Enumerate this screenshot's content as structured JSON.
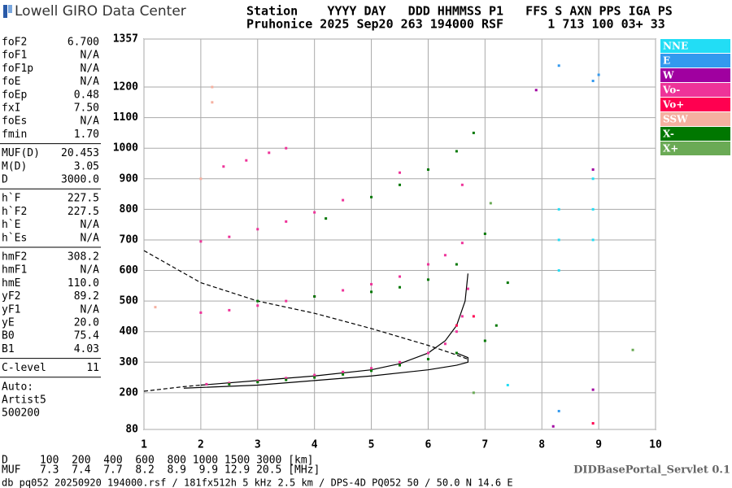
{
  "header": {
    "logo": "Lowell GIRO Data Center",
    "line1": "Station    YYYY DAY   DDD HHMMSS P1   FFS S AXN PPS IGA PS",
    "line2": "Pruhonice 2025 Sep20 263 194000 RSF      1 713 100 03+ 33"
  },
  "params": [
    [
      [
        "foF2",
        "6.700"
      ],
      [
        "foF1",
        "N/A"
      ],
      [
        "foF1p",
        "N/A"
      ],
      [
        "foE",
        "N/A"
      ],
      [
        "foEp",
        "0.48"
      ],
      [
        "fxI",
        "7.50"
      ],
      [
        "foEs",
        "N/A"
      ],
      [
        "fmin",
        "1.70"
      ]
    ],
    [
      [
        "MUF(D)",
        "20.453"
      ],
      [
        "M(D)",
        "3.05"
      ],
      [
        "D",
        "3000.0"
      ]
    ],
    [
      [
        "h`F",
        "227.5"
      ],
      [
        "h`F2",
        "227.5"
      ],
      [
        "h`E",
        "N/A"
      ],
      [
        "h`Es",
        "N/A"
      ]
    ],
    [
      [
        "hmF2",
        "308.2"
      ],
      [
        "hmF1",
        "N/A"
      ],
      [
        "hmE",
        "110.0"
      ],
      [
        "yF2",
        "89.2"
      ],
      [
        "yF1",
        "N/A"
      ],
      [
        "yE",
        "20.0"
      ],
      [
        "B0",
        "75.4"
      ],
      [
        "B1",
        "4.03"
      ]
    ],
    [
      [
        "C-level",
        "11"
      ]
    ]
  ],
  "auto": [
    "Auto:",
    "Artist5",
    "500200"
  ],
  "footer": {
    "d_row": "D     100  200  400  600  800 1000 1500 3000 [km]",
    "muf_row": "MUF   7.3  7.4  7.7  8.2  8.9  9.9 12.9 20.5 [MHz]",
    "file": "db pq052 20250920 194000.rsf / 181fx512h 5 kHz 2.5 km / DPS-4D PQ052 50 / 50.0 N 14.6 E",
    "servlet": "DIDBasePortal_Servlet 0.1"
  },
  "chart_data": {
    "type": "scatter",
    "xlim": [
      1,
      10
    ],
    "xticks": [
      1,
      2,
      3,
      4,
      5,
      6,
      7,
      8,
      9,
      10
    ],
    "ylim": [
      80,
      1357
    ],
    "yticks": [
      80,
      200,
      300,
      400,
      500,
      600,
      700,
      800,
      900,
      1000,
      1100,
      1200,
      1357
    ],
    "grid": true,
    "legend": "right",
    "series": [
      {
        "name": "NNE",
        "color": "#22ddf5",
        "x": [
          8.3,
          8.3,
          8.3,
          8.9,
          8.9,
          8.9,
          7.4
        ],
        "values": [
          600,
          700,
          800,
          700,
          800,
          900,
          225
        ]
      },
      {
        "name": "E",
        "color": "#3399ee",
        "x": [
          8.9,
          9.0,
          8.3,
          8.3
        ],
        "values": [
          1220,
          1240,
          140,
          1270
        ]
      },
      {
        "name": "W",
        "color": "#a000a0",
        "x": [
          8.9,
          8.9,
          7.9,
          8.2
        ],
        "values": [
          930,
          210,
          1190,
          90
        ]
      },
      {
        "name": "Vo-",
        "color": "#ee3399",
        "x": [
          2.1,
          2.5,
          3.0,
          3.5,
          4.0,
          4.5,
          5.0,
          5.5,
          6.0,
          6.3,
          6.5,
          6.6,
          6.7,
          2.0,
          2.5,
          3.0,
          3.5,
          4.0,
          4.5,
          5.0,
          5.5,
          6.0,
          6.3,
          6.6,
          2.0,
          2.5,
          3.0,
          3.5,
          4.0,
          4.5,
          2.4,
          2.8,
          3.2,
          3.5,
          5.5,
          6.6
        ],
        "values": [
          228,
          232,
          240,
          248,
          258,
          268,
          280,
          300,
          330,
          360,
          400,
          450,
          540,
          462,
          470,
          485,
          500,
          515,
          535,
          555,
          580,
          620,
          650,
          690,
          695,
          710,
          735,
          760,
          790,
          830,
          940,
          960,
          985,
          1000,
          920,
          880
        ]
      },
      {
        "name": "Vo+",
        "color": "#ff0050",
        "x": [
          6.8,
          8.9,
          6.5
        ],
        "values": [
          450,
          100,
          420
        ]
      },
      {
        "name": "SSW",
        "color": "#f5b0a0",
        "x": [
          2.2,
          2.2,
          1.2,
          2.0
        ],
        "values": [
          1150,
          1200,
          480,
          900
        ]
      },
      {
        "name": "X-",
        "color": "#007700",
        "x": [
          2.5,
          3.0,
          3.5,
          4.0,
          4.5,
          5.0,
          5.5,
          6.0,
          6.5,
          7.0,
          7.2,
          7.4,
          3.0,
          4.0,
          5.0,
          5.5,
          6.0,
          6.5,
          7.0,
          4.2,
          5.0,
          5.5,
          6.0,
          6.5,
          6.8
        ],
        "values": [
          228,
          235,
          242,
          250,
          260,
          272,
          290,
          310,
          330,
          370,
          420,
          560,
          500,
          515,
          530,
          545,
          570,
          620,
          720,
          770,
          840,
          880,
          930,
          990,
          1050
        ]
      },
      {
        "name": "X+",
        "color": "#6aaa55",
        "x": [
          9.6,
          6.8,
          7.1
        ],
        "values": [
          340,
          200,
          820
        ]
      }
    ],
    "curves": [
      {
        "x": [
          2.0,
          3.0,
          4.0,
          5.0,
          5.5,
          6.0,
          6.3,
          6.5,
          6.65,
          6.7
        ],
        "y": [
          225,
          240,
          255,
          275,
          295,
          330,
          370,
          420,
          500,
          590
        ],
        "dash": false
      },
      {
        "x": [
          1.7,
          3.0,
          4.0,
          5.0,
          6.0,
          6.5,
          6.7,
          6.7,
          6.5
        ],
        "y": [
          215,
          225,
          240,
          255,
          275,
          290,
          300,
          315,
          330
        ],
        "dash": false
      },
      {
        "x": [
          1.0,
          2.0,
          3.0,
          4.0,
          5.0,
          6.0,
          6.4,
          6.7
        ],
        "y": [
          665,
          560,
          500,
          460,
          410,
          355,
          330,
          310
        ],
        "dash": true
      },
      {
        "x": [
          1.0,
          1.7,
          2.0
        ],
        "y": [
          205,
          220,
          225
        ],
        "dash": true
      }
    ]
  }
}
